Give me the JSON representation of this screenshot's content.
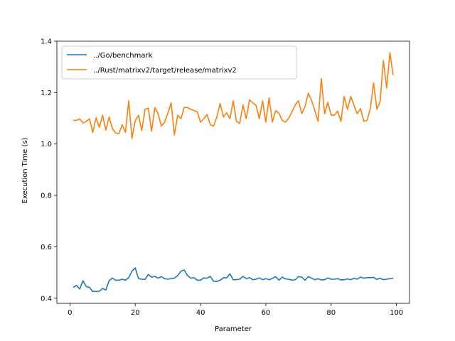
{
  "chart_data": {
    "type": "line",
    "title": "",
    "xlabel": "Parameter",
    "ylabel": "Execution Time (s)",
    "xlim": [
      -4,
      104
    ],
    "ylim": [
      0.38,
      1.4
    ],
    "xticks": [
      0,
      20,
      40,
      60,
      80,
      100
    ],
    "yticks": [
      0.4,
      0.6,
      0.8,
      1.0,
      1.2,
      1.4
    ],
    "xtick_labels": [
      "0",
      "20",
      "40",
      "60",
      "80",
      "100"
    ],
    "ytick_labels": [
      "0.4",
      "0.6",
      "0.8",
      "1.0",
      "1.2",
      "1.4"
    ],
    "grid": false,
    "legend_position": "top-left",
    "x": [
      1,
      2,
      3,
      4,
      5,
      6,
      7,
      8,
      9,
      10,
      11,
      12,
      13,
      14,
      15,
      16,
      17,
      18,
      19,
      20,
      21,
      22,
      23,
      24,
      25,
      26,
      27,
      28,
      29,
      30,
      31,
      32,
      33,
      34,
      35,
      36,
      37,
      38,
      39,
      40,
      41,
      42,
      43,
      44,
      45,
      46,
      47,
      48,
      49,
      50,
      51,
      52,
      53,
      54,
      55,
      56,
      57,
      58,
      59,
      60,
      61,
      62,
      63,
      64,
      65,
      66,
      67,
      68,
      69,
      70,
      71,
      72,
      73,
      74,
      75,
      76,
      77,
      78,
      79,
      80,
      81,
      82,
      83,
      84,
      85,
      86,
      87,
      88,
      89,
      90,
      91,
      92,
      93,
      94,
      95,
      96,
      97,
      98,
      99
    ],
    "series": [
      {
        "name": "../Go/benchmark",
        "color": "#1f77b4",
        "values": [
          0.442,
          0.45,
          0.436,
          0.468,
          0.445,
          0.442,
          0.426,
          0.426,
          0.427,
          0.438,
          0.432,
          0.468,
          0.478,
          0.47,
          0.47,
          0.474,
          0.47,
          0.48,
          0.505,
          0.518,
          0.476,
          0.474,
          0.473,
          0.492,
          0.482,
          0.485,
          0.478,
          0.484,
          0.476,
          0.474,
          0.476,
          0.478,
          0.488,
          0.505,
          0.51,
          0.488,
          0.478,
          0.48,
          0.47,
          0.47,
          0.479,
          0.478,
          0.485,
          0.466,
          0.465,
          0.47,
          0.48,
          0.479,
          0.495,
          0.472,
          0.472,
          0.474,
          0.485,
          0.476,
          0.48,
          0.472,
          0.474,
          0.479,
          0.472,
          0.476,
          0.472,
          0.477,
          0.484,
          0.47,
          0.482,
          0.475,
          0.474,
          0.47,
          0.472,
          0.484,
          0.482,
          0.47,
          0.484,
          0.478,
          0.472,
          0.476,
          0.471,
          0.472,
          0.479,
          0.474,
          0.474,
          0.476,
          0.471,
          0.472,
          0.475,
          0.472,
          0.478,
          0.474,
          0.482,
          0.478,
          0.48,
          0.48,
          0.481,
          0.473,
          0.478,
          0.472,
          0.474,
          0.476,
          0.478
        ]
      },
      {
        "name": "../Rust/matrixv2/target/release/matrixv2",
        "color": "#ff7f0e",
        "values": [
          1.092,
          1.092,
          1.098,
          1.082,
          1.088,
          1.098,
          1.045,
          1.102,
          1.065,
          1.112,
          1.055,
          1.105,
          1.06,
          1.043,
          1.04,
          1.075,
          1.045,
          1.168,
          1.022,
          1.09,
          1.112,
          1.052,
          1.135,
          1.14,
          1.05,
          1.142,
          1.118,
          1.07,
          1.085,
          1.12,
          1.16,
          1.035,
          1.112,
          1.098,
          1.142,
          1.142,
          1.135,
          1.13,
          1.125,
          1.085,
          1.098,
          1.115,
          1.075,
          1.07,
          1.105,
          1.158,
          1.105,
          1.122,
          1.098,
          1.168,
          1.088,
          1.08,
          1.152,
          1.098,
          1.172,
          1.16,
          1.15,
          1.098,
          1.168,
          1.085,
          1.18,
          1.085,
          1.13,
          1.12,
          1.092,
          1.085,
          1.1,
          1.125,
          1.152,
          1.168,
          1.118,
          1.145,
          1.198,
          1.17,
          1.13,
          1.088,
          1.255,
          1.118,
          1.162,
          1.112,
          1.112,
          1.128,
          1.088,
          1.185,
          1.135,
          1.185,
          1.15,
          1.118,
          1.138,
          1.088,
          1.092,
          1.138,
          1.238,
          1.135,
          1.165,
          1.325,
          1.218,
          1.355,
          1.268
        ]
      }
    ]
  }
}
